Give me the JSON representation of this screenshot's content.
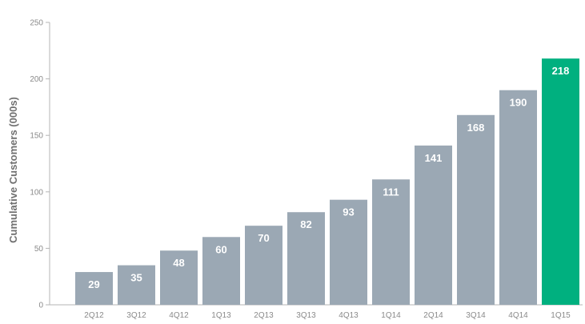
{
  "chart_data": {
    "type": "bar",
    "title": "",
    "xlabel": "",
    "ylabel": "Cumulative Customers (000s)",
    "ylim": [
      0,
      250
    ],
    "yticks": [
      0,
      50,
      100,
      150,
      200,
      250
    ],
    "grid": false,
    "legend": "none",
    "categories": [
      "2Q12",
      "3Q12",
      "4Q12",
      "1Q13",
      "2Q13",
      "3Q13",
      "4Q13",
      "1Q14",
      "2Q14",
      "3Q14",
      "4Q14",
      "1Q15"
    ],
    "values": [
      29,
      35,
      48,
      60,
      70,
      82,
      93,
      111,
      141,
      168,
      190,
      218
    ],
    "colors": {
      "default_bar": "#9ba8b4",
      "highlight_bar": "#00b07f",
      "axis": "#b5b5b5"
    },
    "highlight_index": 11
  }
}
